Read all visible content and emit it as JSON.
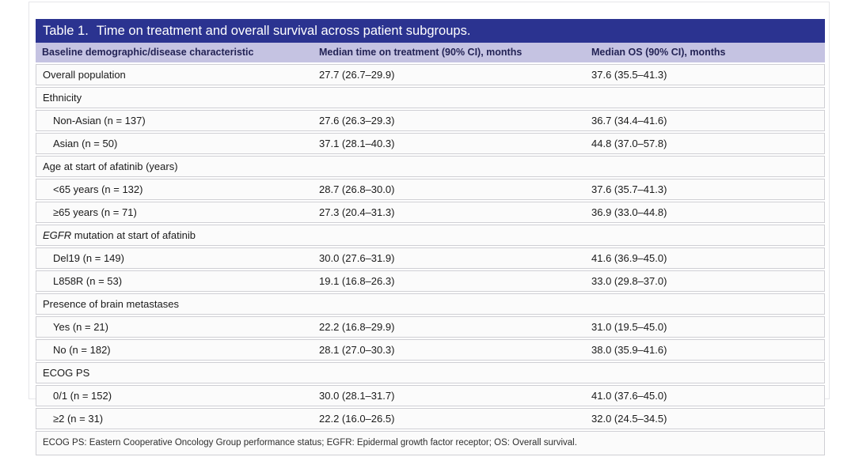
{
  "colors": {
    "title_bar": "#2b3390",
    "title_text": "#ffffff",
    "header_bg": "#c5c3e2",
    "header_text": "#232355",
    "row_bg": "#fbfbfb",
    "border": "#cfcfd4"
  },
  "table": {
    "title": {
      "label": "Table 1.",
      "text": "Time on treatment and overall survival across patient subgroups."
    },
    "columns": [
      "Baseline demographic/disease characteristic",
      "Median time on treatment (90% CI), months",
      "Median OS (90% CI), months"
    ],
    "rows": [
      {
        "type": "data",
        "indent": false,
        "label": "Overall population",
        "tot": "27.7 (26.7–29.9)",
        "os": "37.6 (35.5–41.3)"
      },
      {
        "type": "section",
        "indent": false,
        "label": "Ethnicity",
        "tot": "",
        "os": ""
      },
      {
        "type": "data",
        "indent": true,
        "label": "Non-Asian (n = 137)",
        "tot": "27.6 (26.3–29.3)",
        "os": "36.7 (34.4–41.6)"
      },
      {
        "type": "data",
        "indent": true,
        "label": "Asian (n = 50)",
        "tot": "37.1 (28.1–40.3)",
        "os": "44.8 (37.0–57.8)"
      },
      {
        "type": "section",
        "indent": false,
        "label": "Age at start of afatinib (years)",
        "tot": "",
        "os": ""
      },
      {
        "type": "data",
        "indent": true,
        "label": "<65 years (n = 132)",
        "tot": "28.7 (26.8–30.0)",
        "os": "37.6 (35.7–41.3)"
      },
      {
        "type": "data",
        "indent": true,
        "label": "≥65 years (n = 71)",
        "tot": "27.3 (20.4–31.3)",
        "os": "36.9 (33.0–44.8)"
      },
      {
        "type": "section",
        "indent": false,
        "label_italic": "EGFR",
        "label": " mutation at start of afatinib",
        "tot": "",
        "os": ""
      },
      {
        "type": "data",
        "indent": true,
        "label": "Del19 (n = 149)",
        "tot": "30.0 (27.6–31.9)",
        "os": "41.6 (36.9–45.0)"
      },
      {
        "type": "data",
        "indent": true,
        "label": "L858R (n = 53)",
        "tot": "19.1 (16.8–26.3)",
        "os": "33.0 (29.8–37.0)"
      },
      {
        "type": "section",
        "indent": false,
        "label": "Presence of brain metastases",
        "tot": "",
        "os": ""
      },
      {
        "type": "data",
        "indent": true,
        "label": "Yes (n = 21)",
        "tot": "22.2 (16.8–29.9)",
        "os": "31.0 (19.5–45.0)"
      },
      {
        "type": "data",
        "indent": true,
        "label": "No (n = 182)",
        "tot": "28.1 (27.0–30.3)",
        "os": "38.0 (35.9–41.6)"
      },
      {
        "type": "section",
        "indent": false,
        "label": "ECOG PS",
        "tot": "",
        "os": ""
      },
      {
        "type": "data",
        "indent": true,
        "label": "0/1 (n = 152)",
        "tot": "30.0 (28.1–31.7)",
        "os": "41.0 (37.6–45.0)"
      },
      {
        "type": "data",
        "indent": true,
        "label": "≥2 (n = 31)",
        "tot": "22.2 (16.0–26.5)",
        "os": "32.0 (24.5–34.5)"
      }
    ],
    "footnote": "ECOG PS: Eastern Cooperative Oncology Group performance status; EGFR: Epidermal growth factor receptor; OS: Overall survival."
  }
}
